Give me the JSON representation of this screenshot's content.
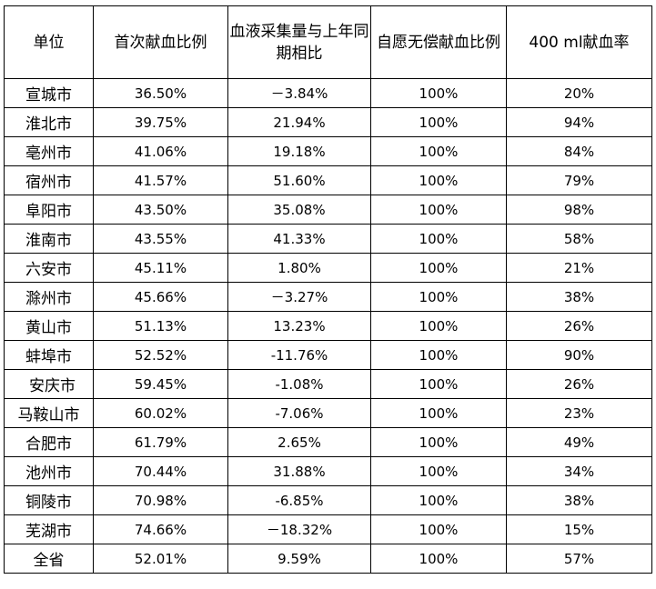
{
  "table": {
    "headers": {
      "unit": "单位",
      "first_time_ratio": "首次献血比例",
      "yoy": "血液采集量与上年同期相比",
      "voluntary": "自愿无偿献血比例",
      "ml400": "400 ml献血率"
    },
    "rows": [
      {
        "unit": "宣城市",
        "first_time_ratio": "36.50%",
        "yoy": "－3.84%",
        "voluntary": "100%",
        "ml400": "20%"
      },
      {
        "unit": "淮北市",
        "first_time_ratio": "39.75%",
        "yoy": "21.94%",
        "voluntary": "100%",
        "ml400": "94%"
      },
      {
        "unit": "亳州市",
        "first_time_ratio": "41.06%",
        "yoy": "19.18%",
        "voluntary": "100%",
        "ml400": "84%"
      },
      {
        "unit": "宿州市",
        "first_time_ratio": "41.57%",
        "yoy": "51.60%",
        "voluntary": "100%",
        "ml400": "79%"
      },
      {
        "unit": "阜阳市",
        "first_time_ratio": "43.50%",
        "yoy": "35.08%",
        "voluntary": "100%",
        "ml400": "98%"
      },
      {
        "unit": "淮南市",
        "first_time_ratio": "43.55%",
        "yoy": "41.33%",
        "voluntary": "100%",
        "ml400": "58%"
      },
      {
        "unit": "六安市",
        "first_time_ratio": "45.11%",
        "yoy": "1.80%",
        "voluntary": "100%",
        "ml400": "21%"
      },
      {
        "unit": "滁州市",
        "first_time_ratio": "45.66%",
        "yoy": "－3.27%",
        "voluntary": "100%",
        "ml400": "38%"
      },
      {
        "unit": "黄山市",
        "first_time_ratio": "51.13%",
        "yoy": "13.23%",
        "voluntary": "100%",
        "ml400": "26%"
      },
      {
        "unit": "蚌埠市",
        "first_time_ratio": "52.52%",
        "yoy": "-11.76%",
        "voluntary": "100%",
        "ml400": "90%"
      },
      {
        "unit": "安庆市",
        "first_time_ratio": "59.45%",
        "yoy": "-1.08%",
        "voluntary": "100%",
        "ml400": "26%"
      },
      {
        "unit": "马鞍山市",
        "first_time_ratio": "60.02%",
        "yoy": "-7.06%",
        "voluntary": "100%",
        "ml400": "23%"
      },
      {
        "unit": "合肥市",
        "first_time_ratio": "61.79%",
        "yoy": "2.65%",
        "voluntary": "100%",
        "ml400": "49%"
      },
      {
        "unit": "池州市",
        "first_time_ratio": "70.44%",
        "yoy": "31.88%",
        "voluntary": "100%",
        "ml400": "34%"
      },
      {
        "unit": "铜陵市",
        "first_time_ratio": "70.98%",
        "yoy": "-6.85%",
        "voluntary": "100%",
        "ml400": "38%"
      },
      {
        "unit": "芜湖市",
        "first_time_ratio": "74.66%",
        "yoy": "－18.32%",
        "voluntary": "100%",
        "ml400": "15%"
      },
      {
        "unit": "全省",
        "first_time_ratio": "52.01%",
        "yoy": "9.59%",
        "voluntary": "100%",
        "ml400": "57%"
      }
    ]
  }
}
